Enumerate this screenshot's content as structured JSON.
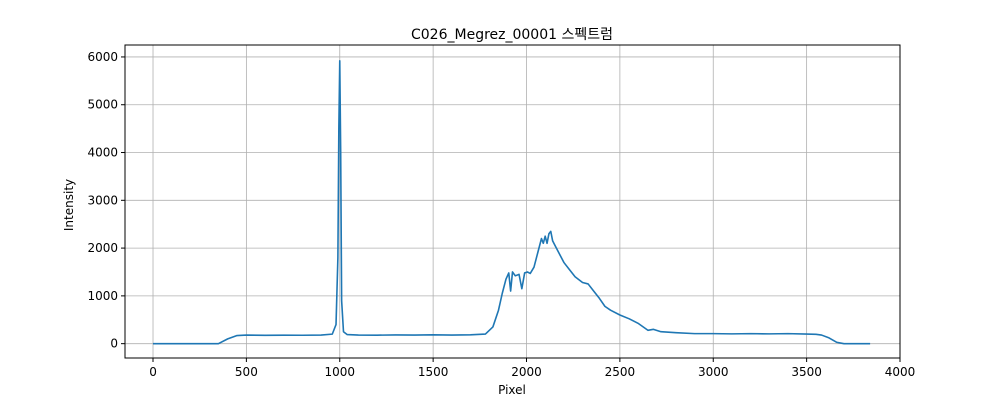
{
  "chart_data": {
    "type": "line",
    "title": "C026_Megrez_00001 스펙트럼",
    "xlabel": "Pixel",
    "ylabel": "Intensity",
    "xlim": [
      -150,
      4000
    ],
    "ylim": [
      -300,
      6250
    ],
    "xticks": [
      0,
      500,
      1000,
      1500,
      2000,
      2500,
      3000,
      3500,
      4000
    ],
    "yticks": [
      0,
      1000,
      2000,
      3000,
      4000,
      5000,
      6000
    ],
    "xtick_labels": [
      "0",
      "500",
      "1000",
      "1500",
      "2000",
      "2500",
      "3000",
      "3500",
      "4000"
    ],
    "ytick_labels": [
      "0",
      "1000",
      "2000",
      "3000",
      "4000",
      "5000",
      "6000"
    ],
    "grid": true,
    "series_color": "#1f77b4",
    "series": [
      {
        "x": [
          0,
          350,
          400,
          450,
          500,
          600,
          700,
          800,
          900,
          960,
          980,
          990,
          995,
          1000,
          1005,
          1010,
          1020,
          1040,
          1100,
          1200,
          1300,
          1400,
          1500,
          1600,
          1700,
          1780,
          1820,
          1850,
          1870,
          1890,
          1905,
          1915,
          1925,
          1940,
          1960,
          1975,
          1990,
          2005,
          2020,
          2040,
          2060,
          2080,
          2090,
          2100,
          2110,
          2120,
          2130,
          2140,
          2160,
          2180,
          2200,
          2230,
          2260,
          2300,
          2330,
          2360,
          2390,
          2420,
          2450,
          2500,
          2550,
          2600,
          2650,
          2680,
          2720,
          2800,
          2900,
          3000,
          3100,
          3200,
          3300,
          3400,
          3500,
          3550,
          3580,
          3620,
          3660,
          3700,
          3750,
          3840
        ],
        "y": [
          0,
          0,
          100,
          170,
          180,
          175,
          178,
          176,
          180,
          200,
          400,
          1800,
          4500,
          5920,
          4000,
          900,
          250,
          190,
          180,
          178,
          182,
          180,
          185,
          180,
          185,
          200,
          350,
          700,
          1050,
          1350,
          1480,
          1100,
          1500,
          1420,
          1450,
          1150,
          1480,
          1500,
          1470,
          1600,
          1900,
          2200,
          2100,
          2250,
          2100,
          2300,
          2350,
          2150,
          2000,
          1850,
          1700,
          1550,
          1400,
          1280,
          1250,
          1100,
          950,
          780,
          700,
          600,
          520,
          420,
          280,
          300,
          250,
          230,
          210,
          210,
          205,
          210,
          205,
          210,
          200,
          195,
          180,
          120,
          30,
          0,
          0,
          0
        ]
      }
    ]
  }
}
